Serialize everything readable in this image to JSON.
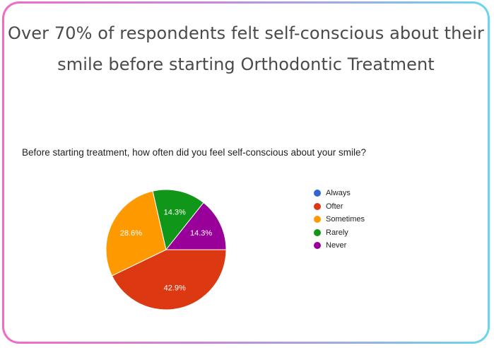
{
  "headline": {
    "line1": "Over 70% of respondents felt self-conscious about their",
    "line2": "smile before starting Orthodontic Treatment"
  },
  "chart_data": {
    "type": "pie",
    "title": "Before starting treatment, how often did you feel self-conscious about your smile?",
    "categories": [
      "Always",
      "Ofter",
      "Sometimes",
      "Rarely",
      "Never"
    ],
    "values": [
      0,
      42.9,
      28.6,
      14.3,
      14.3
    ],
    "slice_labels": [
      "",
      "42.9%",
      "28.6%",
      "14.3%",
      "14.3%"
    ],
    "colors": [
      "#3366cc",
      "#dc3912",
      "#ff9900",
      "#109618",
      "#990099"
    ],
    "legend_position": "right",
    "start": "right-horizontal",
    "direction": "clockwise"
  }
}
